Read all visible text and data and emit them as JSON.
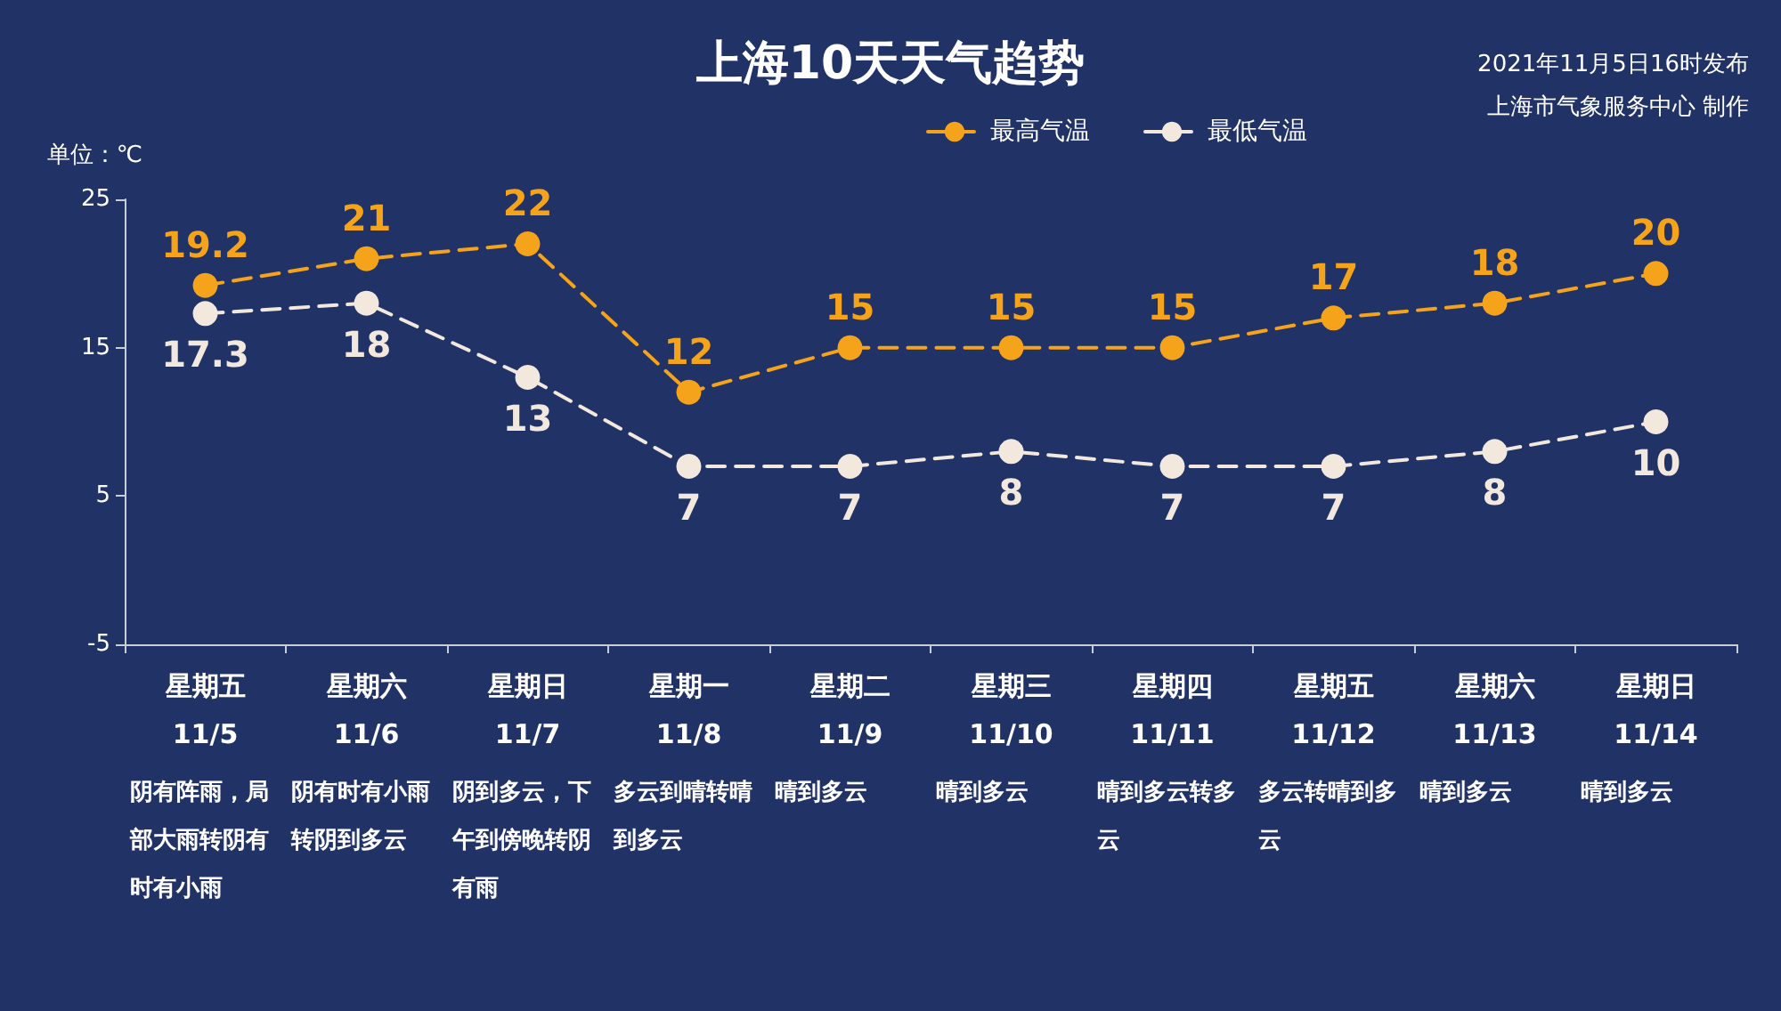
{
  "chart_data": {
    "type": "line",
    "title": "上海10天天气趋势",
    "ylabel": "单位：℃",
    "categories": [
      "星期五\n11/5",
      "星期六\n11/6",
      "星期日\n11/7",
      "星期一\n11/8",
      "星期二\n11/9",
      "星期三\n11/10",
      "星期四\n11/11",
      "星期五\n11/12",
      "星期六\n11/13",
      "星期日\n11/14"
    ],
    "series": [
      {
        "name": "最高气温",
        "color": "#f5a31a",
        "values": [
          19.2,
          21,
          22,
          12,
          15,
          15,
          15,
          17,
          18,
          20
        ]
      },
      {
        "name": "最低气温",
        "color": "#f2e8de",
        "values": [
          17.3,
          18,
          13,
          7,
          7,
          8,
          7,
          7,
          8,
          10
        ]
      }
    ],
    "ylim": [
      -5,
      25
    ],
    "yticks": [
      -5,
      5,
      15,
      25
    ],
    "grid": false,
    "legend": "top right",
    "marker": "circle",
    "line_style": "dashed",
    "data_labels": true,
    "annotations": [
      "2021年11月5日16时发布",
      "上海市气象服务中心 制作",
      "阴有阵雨，局部大雨转阴有时有小雨",
      "阴有时有小雨转阴到多云",
      "阴到多云，下午到傍晚转阴有雨",
      "多云到晴转晴到多云",
      "晴到多云",
      "晴到多云",
      "晴到多云转多云",
      "多云转晴到多云",
      "晴到多云",
      "晴到多云"
    ]
  }
}
